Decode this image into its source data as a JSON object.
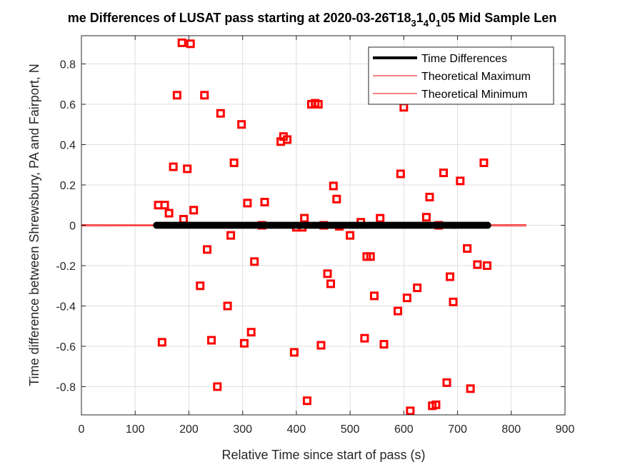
{
  "chart_data": {
    "type": "scatter",
    "title": "me Differences of LUSAT pass starting at 2020-03-26T18_3 1_4 0_1 05 Mid Sample Len",
    "title_parts": {
      "prefix": "me Differences of LUSAT pass starting at 2020-03-26T18",
      "sub1": "3",
      "mid1": "1",
      "sub2": "4",
      "mid2": "0",
      "sub3": "1",
      "suffix": "05 Mid Sample Len"
    },
    "xlabel": "Relative Time since start of pass (s)",
    "ylabel": "Time difference between Shrewsbury, PA and Fairport, N",
    "xlim": [
      0,
      900
    ],
    "ylim": [
      -0.94,
      0.94
    ],
    "xticks": [
      0,
      100,
      200,
      300,
      400,
      500,
      600,
      700,
      800,
      900
    ],
    "yticks": [
      -0.8,
      -0.6,
      -0.4,
      -0.2,
      0,
      0.2,
      0.4,
      0.6,
      0.8
    ],
    "ytick_labels": [
      "-0.8",
      "-0.6",
      "-0.4",
      "-0.2",
      "0",
      "0.2",
      "0.4",
      "0.6",
      "0.8"
    ],
    "grid": true,
    "legend_position": "top-right",
    "legend": [
      "Time Differences",
      "Theoretical Maximum",
      "Theoretical Minimum"
    ],
    "colors": {
      "time_diff": "#000000",
      "theoretical": "#ff0000",
      "squares": "#ff0000",
      "grid": "#dfdfdf"
    },
    "series": [
      {
        "name": "Time Differences",
        "style": "black-line-dots",
        "x_range": [
          140,
          757
        ],
        "value": 0
      },
      {
        "name": "Theoretical Maximum",
        "style": "red-line",
        "points": [
          [
            0,
            0.003
          ],
          [
            828,
            -0.003
          ]
        ]
      },
      {
        "name": "Theoretical Minimum",
        "style": "red-line",
        "points": [
          [
            0,
            -0.003
          ],
          [
            828,
            0.003
          ]
        ]
      },
      {
        "style": "red-square",
        "points": [
          [
            143,
            0.1
          ],
          [
            150,
            -0.58
          ],
          [
            155,
            0.1
          ],
          [
            163,
            0.06
          ],
          [
            171,
            0.29
          ],
          [
            178,
            0.645
          ],
          [
            187,
            0.905
          ],
          [
            190,
            0.03
          ],
          [
            197,
            0.28
          ],
          [
            203,
            0.9
          ],
          [
            209,
            0.075
          ],
          [
            221,
            -0.3
          ],
          [
            229,
            0.645
          ],
          [
            234,
            -0.12
          ],
          [
            242,
            -0.57
          ],
          [
            253,
            -0.8
          ],
          [
            259,
            0.555
          ],
          [
            272,
            -0.4
          ],
          [
            278,
            -0.05
          ],
          [
            284,
            0.31
          ],
          [
            298,
            0.5
          ],
          [
            303,
            -0.585
          ],
          [
            309,
            0.11
          ],
          [
            316,
            -0.53
          ],
          [
            322,
            -0.18
          ],
          [
            336,
            0.0
          ],
          [
            341,
            0.115
          ],
          [
            371,
            0.415
          ],
          [
            376,
            0.44
          ],
          [
            383,
            0.425
          ],
          [
            396,
            -0.63
          ],
          [
            400,
            -0.01
          ],
          [
            411,
            -0.01
          ],
          [
            415,
            0.035
          ],
          [
            420,
            -0.87
          ],
          [
            428,
            0.6
          ],
          [
            435,
            0.605
          ],
          [
            441,
            0.6
          ],
          [
            446,
            -0.595
          ],
          [
            451,
            0.0
          ],
          [
            458,
            -0.24
          ],
          [
            464,
            -0.29
          ],
          [
            469,
            0.195
          ],
          [
            475,
            0.13
          ],
          [
            480,
            -0.005
          ],
          [
            500,
            -0.05
          ],
          [
            520,
            0.015
          ],
          [
            527,
            -0.56
          ],
          [
            531,
            -0.155
          ],
          [
            538,
            -0.155
          ],
          [
            545,
            -0.35
          ],
          [
            556,
            0.035
          ],
          [
            563,
            -0.59
          ],
          [
            589,
            -0.425
          ],
          [
            594,
            0.255
          ],
          [
            600,
            0.585
          ],
          [
            606,
            -0.36
          ],
          [
            612,
            -0.92
          ],
          [
            625,
            -0.31
          ],
          [
            642,
            0.04
          ],
          [
            648,
            0.14
          ],
          [
            653,
            -0.895
          ],
          [
            660,
            -0.89
          ],
          [
            665,
            0.0
          ],
          [
            674,
            0.26
          ],
          [
            680,
            -0.78
          ],
          [
            686,
            -0.255
          ],
          [
            692,
            -0.38
          ],
          [
            705,
            0.22
          ],
          [
            718,
            -0.115
          ],
          [
            724,
            -0.81
          ],
          [
            737,
            -0.195
          ],
          [
            749,
            0.31
          ],
          [
            755,
            -0.2
          ]
        ]
      }
    ]
  }
}
